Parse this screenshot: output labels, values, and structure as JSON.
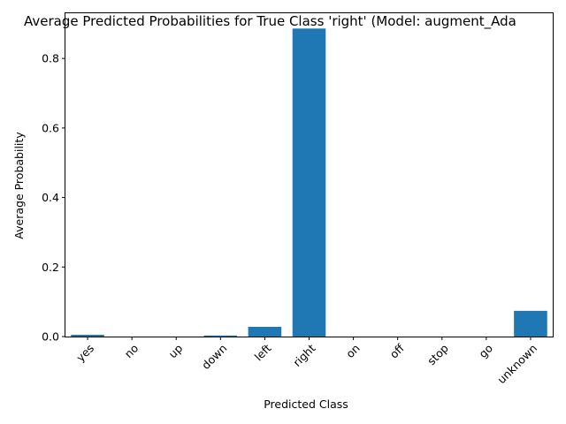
{
  "chart_data": {
    "type": "bar",
    "title": "Average Predicted Probabilities for True Class 'right' (Model: augment_Ada",
    "xlabel": "Predicted Class",
    "ylabel": "Average Probability",
    "categories": [
      "yes",
      "no",
      "up",
      "down",
      "left",
      "right",
      "on",
      "off",
      "stop",
      "go",
      "unknown"
    ],
    "values": [
      0.005,
      0.0,
      0.0,
      0.003,
      0.028,
      0.886,
      0.0,
      0.0,
      0.0,
      0.0,
      0.074
    ],
    "ylim": [
      0,
      0.93
    ],
    "yticks": [
      0.0,
      0.2,
      0.4,
      0.6,
      0.8
    ],
    "ytick_labels": [
      "0.0",
      "0.2",
      "0.4",
      "0.6",
      "0.8"
    ],
    "grid": false,
    "bar_color": "#1f77b4"
  }
}
